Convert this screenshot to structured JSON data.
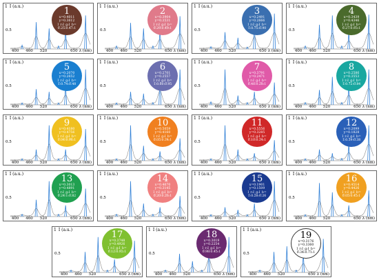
{
  "axis": {
    "ylabel": "I (a.u.)",
    "ytick_top": "1",
    "ytick_mid": "0.5",
    "xticks": [
      "400",
      "460",
      "520",
      "650"
    ],
    "xlabel": "λ (nm)"
  },
  "colors": {
    "spectrum": "#2f7fd6",
    "envelope": "#8a8a8a",
    "baseline": "#999999"
  },
  "panels": [
    {
      "num": "1",
      "x": "x=0.4011",
      "y": "y=0.3612",
      "ratio_label": "I_r:I_g:I_b=",
      "ratio": "0.25:0.47:1",
      "color": "#6b3a2c",
      "peaks": [
        0.1,
        0.72,
        0.55,
        0.08,
        0.55,
        0.9
      ]
    },
    {
      "num": "2",
      "x": "x=0.3904",
      "y": "y=0.3531",
      "ratio_label": "I_r:I_g:I_b=",
      "ratio": "0.29:0.49:1",
      "color": "#e07a8a",
      "peaks": [
        0.08,
        0.7,
        0.55,
        0.08,
        0.55,
        0.88
      ]
    },
    {
      "num": "3",
      "x": "x=0.2491",
      "y": "y=0.2666",
      "ratio_label": "I_r:I_g:I_b=",
      "ratio": "1:0.75:0.90",
      "color": "#3a6fb0",
      "peaks": [
        0.06,
        0.45,
        0.3,
        0.05,
        0.7,
        0.95
      ]
    },
    {
      "num": "4",
      "x": "x=0.3439",
      "y": "y=0.4346",
      "ratio_label": "I_r:I_g:I_b=",
      "ratio": "0.27:0.93:1",
      "color": "#4a6a2c",
      "peaks": [
        0.08,
        0.65,
        0.9,
        0.08,
        0.45,
        0.92
      ]
    },
    {
      "num": "5",
      "x": "x=0.2070",
      "y": "y=0.2652",
      "ratio_label": "I_r:I_g:I_b=",
      "ratio": "1:0.74:0.48",
      "color": "#1a7fd0",
      "peaks": [
        0.05,
        0.42,
        0.35,
        0.05,
        0.55,
        0.95
      ]
    },
    {
      "num": "6",
      "x": "x=0.2701",
      "y": "y=0.2557",
      "ratio_label": "I_r:I_g:I_b=",
      "ratio": "1:0.60:0.95",
      "color": "#6c6fb0",
      "peaks": [
        0.05,
        0.35,
        0.3,
        0.06,
        0.8,
        0.95
      ]
    },
    {
      "num": "7",
      "x": "x=0.3791",
      "y": "y=0.2471",
      "ratio_label": "I_r:I_g:I_b=",
      "ratio": "0.48:0.28:1",
      "color": "#e05aa8",
      "peaks": [
        0.08,
        0.95,
        0.25,
        0.06,
        0.35,
        0.6
      ]
    },
    {
      "num": "8",
      "x": "x=0.2586",
      "y": "y=0.3553",
      "ratio_label": "I_r:I_g:I_b=",
      "ratio": "1:0.72:0.84",
      "color": "#19a7a0",
      "peaks": [
        0.06,
        0.4,
        0.75,
        0.06,
        0.55,
        0.95
      ]
    },
    {
      "num": "9",
      "x": "x=0.4180",
      "y": "y=0.4756",
      "ratio_label": "I_r:I_g:I_b=",
      "ratio": "0.04:0.96:1",
      "color": "#f0c020",
      "peaks": [
        0.05,
        0.3,
        0.95,
        0.05,
        0.3,
        0.85
      ]
    },
    {
      "num": "10",
      "x": "x=0.5059",
      "y": "y=0.4160",
      "ratio_label": "I_r:I_g:I_b=",
      "ratio": "0.05:0.34:1",
      "color": "#f08020",
      "peaks": [
        0.05,
        0.95,
        0.4,
        0.05,
        0.25,
        0.6
      ]
    },
    {
      "num": "11",
      "x": "x=0.5556",
      "y": "y=0.3285",
      "ratio_label": "I_r:I_g:I_b=",
      "ratio": "0.10:0.34:1",
      "color": "#d02828",
      "peaks": [
        0.05,
        0.95,
        0.3,
        0.05,
        0.2,
        0.55
      ]
    },
    {
      "num": "12",
      "x": "x=0.2099",
      "y": "y=0.1828",
      "ratio_label": "I_r:I_g:I_b=",
      "ratio": "1:0.39:0.38",
      "color": "#2a60b8",
      "peaks": [
        0.05,
        0.3,
        0.2,
        0.06,
        0.45,
        0.95
      ]
    },
    {
      "num": "13",
      "x": "x=0.3013",
      "y": "y=0.4891",
      "ratio_label": "I_r:I_g:I_b=",
      "ratio": "0.24:1:0.82",
      "color": "#20a050",
      "peaks": [
        0.06,
        0.45,
        0.95,
        0.06,
        0.3,
        0.75
      ]
    },
    {
      "num": "14",
      "x": "x=0.4670",
      "y": "y=0.3145",
      "ratio_label": "I_r:I_g:I_b=",
      "ratio": "0.20:0.26:1",
      "color": "#f08080",
      "peaks": [
        0.06,
        0.95,
        0.35,
        0.06,
        0.25,
        0.55
      ]
    },
    {
      "num": "15",
      "x": "x=0.1901",
      "y": "y=0.1509",
      "ratio_label": "I_r:I_g:I_b=",
      "ratio": "1:0.28:0.26",
      "color": "#1a3a90",
      "peaks": [
        0.05,
        0.25,
        0.18,
        0.05,
        0.35,
        0.95
      ]
    },
    {
      "num": "16",
      "x": "x=0.4514",
      "y": "y=0.4426",
      "ratio_label": "I_r:I_g:I_b=",
      "ratio": "0.05:0.45:1",
      "color": "#f0a020",
      "peaks": [
        0.05,
        0.9,
        0.65,
        0.05,
        0.3,
        0.7
      ]
    },
    {
      "num": "17",
      "x": "x=0.3748",
      "y": "y=0.4926",
      "ratio_label": "I_r:I_g:I_b=",
      "ratio": "0.12:0.92:1",
      "color": "#80c030",
      "peaks": [
        0.06,
        0.55,
        0.95,
        0.06,
        0.35,
        0.85
      ]
    },
    {
      "num": "18",
      "x": "x=0.3019",
      "y": "y=0.2254",
      "ratio_label": "I_r:I_g:I_b=",
      "ratio": "0.98:0.45:1",
      "color": "#6a2a70",
      "peaks": [
        0.06,
        0.5,
        0.3,
        0.06,
        0.75,
        0.95
      ]
    },
    {
      "num": "19",
      "x": "x=0.3176",
      "y": "y=0.3360",
      "ratio_label": "I_r:I_g:I_b=",
      "ratio": "0.34:0.71:1",
      "color": "#ffffff",
      "peaks": [
        0.06,
        0.55,
        0.7,
        0.06,
        0.5,
        0.9
      ]
    }
  ]
}
